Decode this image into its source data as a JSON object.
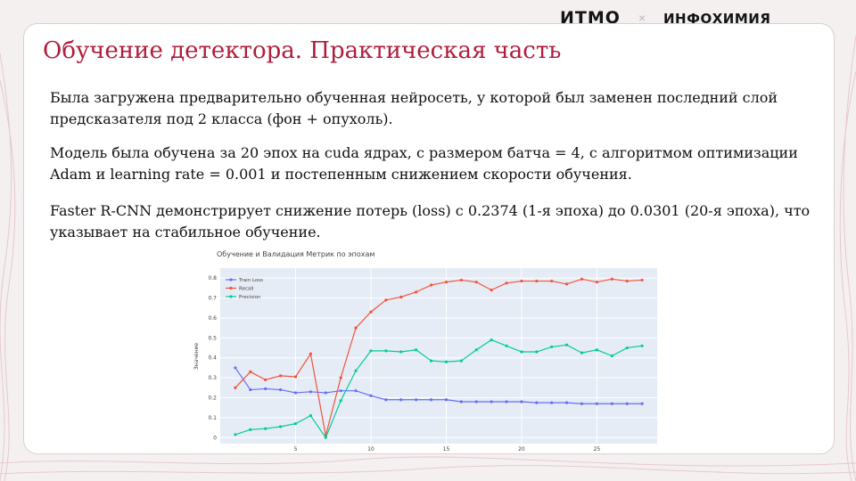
{
  "brand": {
    "logo_left": "ИТМО",
    "separator": "×",
    "logo_right": "ИНФОХИМИЯ",
    "accent_color": "#b01c3c"
  },
  "slide": {
    "title": "Обучение детектора. Практическая часть",
    "paragraphs": [
      "Была загружена предварительно обученная нейросеть, у которой был заменен последний слой предсказателя под 2 класса (фон + опухоль).",
      "Модель была обучена за 20 эпох на cuda ядрах, с размером батча = 4, с алгоритмом оптимизации Adam и learning rate = 0.001 и постепенным снижением скорости обучения.",
      "Faster R-CNN демонстрирует снижение потерь (loss) с 0.2374 (1-я эпоха) до 0.0301 (20-я эпоха), что указывает на стабильное обучение."
    ]
  },
  "chart_data": {
    "type": "line",
    "title": "Обучение и Валидация Метрик по эпохам",
    "xlabel": "",
    "ylabel": "Значение",
    "xlim": [
      0,
      29
    ],
    "ylim": [
      -0.03,
      0.85
    ],
    "x_ticks": [
      5,
      10,
      15,
      20,
      25
    ],
    "y_ticks": [
      0,
      0.1,
      0.2,
      0.3,
      0.4,
      0.5,
      0.6,
      0.7,
      0.8
    ],
    "grid": true,
    "legend_position": "top-left",
    "x": [
      1,
      2,
      3,
      4,
      5,
      6,
      7,
      8,
      9,
      10,
      11,
      12,
      13,
      14,
      15,
      16,
      17,
      18,
      19,
      20,
      21,
      22,
      23,
      24,
      25,
      26,
      27,
      28
    ],
    "series": [
      {
        "name": "Train Loss",
        "color": "#636efa",
        "values": [
          0.35,
          0.24,
          0.245,
          0.24,
          0.225,
          0.23,
          0.225,
          0.235,
          0.235,
          0.21,
          0.19,
          0.19,
          0.19,
          0.19,
          0.19,
          0.18,
          0.18,
          0.18,
          0.18,
          0.18,
          0.175,
          0.175,
          0.175,
          0.17,
          0.17,
          0.17,
          0.17,
          0.17
        ]
      },
      {
        "name": "Recall",
        "color": "#ef553b",
        "values": [
          0.25,
          0.33,
          0.29,
          0.31,
          0.305,
          0.42,
          0.01,
          0.3,
          0.55,
          0.63,
          0.69,
          0.705,
          0.73,
          0.765,
          0.78,
          0.79,
          0.78,
          0.74,
          0.775,
          0.785,
          0.785,
          0.785,
          0.77,
          0.795,
          0.78,
          0.795,
          0.785,
          0.79
        ]
      },
      {
        "name": "Precision",
        "color": "#00cc96",
        "values": [
          0.015,
          0.04,
          0.045,
          0.055,
          0.07,
          0.11,
          0.0,
          0.185,
          0.335,
          0.435,
          0.435,
          0.43,
          0.44,
          0.385,
          0.38,
          0.385,
          0.44,
          0.49,
          0.46,
          0.43,
          0.43,
          0.455,
          0.465,
          0.425,
          0.44,
          0.41,
          0.45,
          0.46
        ]
      }
    ]
  }
}
